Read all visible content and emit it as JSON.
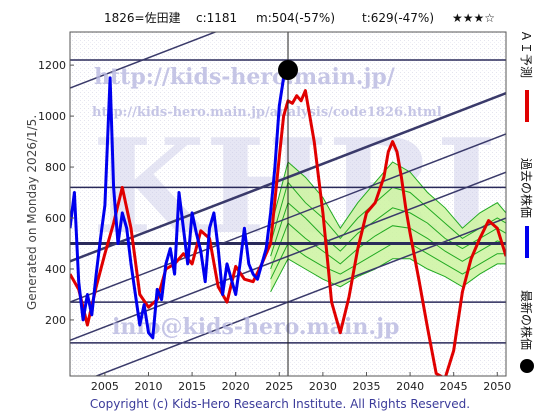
{
  "header": {
    "code_name": "1826=佐田建",
    "current": "c:1181",
    "m_val": "m:504(-57%)",
    "t_val": "t:629(-47%)",
    "stars": "★★★☆"
  },
  "side_label": "Generated on Monday 2026/1/5.",
  "footer": "Copyright (c) Kids-Hero Research Institute. All Rights Reserved.",
  "watermarks": {
    "url": "http://kids-hero.main.jp/",
    "analysis_url": "http://kids-hero.main.jp/analysis/code1826.html",
    "big": "KHRI",
    "email": "info@kids-hero.main.jp"
  },
  "legend": [
    {
      "marker": "line",
      "color": "#e00000",
      "label": "ＡＩ予測"
    },
    {
      "marker": "line",
      "color": "#0000ee",
      "label": "過去の株価"
    },
    {
      "marker": "dot",
      "color": "#000000",
      "label": "最新の株価"
    }
  ],
  "colors": {
    "actual": "#0000ee",
    "forecast": "#e00000",
    "band_line": "#22aa22",
    "band_fill": "#ccf3a0",
    "band_fill_yellow": "#ffffb0",
    "trend": "#3a3a6a",
    "hline": "#2a2a5a"
  },
  "chart_data": {
    "type": "line",
    "xlim": [
      2001,
      2051
    ],
    "ylim": [
      -20,
      1330
    ],
    "xticks": [
      "2005",
      "2010",
      "2015",
      "2020",
      "2025",
      "2030",
      "2035",
      "2040",
      "2045",
      "2050"
    ],
    "yticks": [
      "200",
      "400",
      "600",
      "800",
      "1000",
      "1200"
    ],
    "x_tick_values": [
      2005,
      2010,
      2015,
      2020,
      2025,
      2030,
      2035,
      2040,
      2045,
      2050
    ],
    "y_tick_values": [
      200,
      400,
      600,
      800,
      1000,
      1200
    ],
    "horizontal_levels": [
      110,
      270,
      500,
      720,
      1220
    ],
    "current_marker": {
      "x": 2026.0,
      "y": 1181
    },
    "vertical_marker_x": 2026.0,
    "trend_lines": [
      {
        "x": [
          2001,
          2051
        ],
        "y": [
          1110,
          1770
        ]
      },
      {
        "x": [
          2001,
          2051
        ],
        "y": [
          430,
          1090
        ]
      },
      {
        "x": [
          2001,
          2051
        ],
        "y": [
          270,
          930
        ]
      },
      {
        "x": [
          2001,
          2051
        ],
        "y": [
          120,
          780
        ]
      },
      {
        "x": [
          2001,
          2051
        ],
        "y": [
          -60,
          600
        ]
      }
    ],
    "series": [
      {
        "name": "過去の株価",
        "x": [
          2001.0,
          2001.5,
          2002.0,
          2002.5,
          2003.0,
          2003.5,
          2004.0,
          2004.5,
          2005.0,
          2005.3,
          2005.6,
          2006.0,
          2006.5,
          2007.0,
          2007.5,
          2008.0,
          2008.5,
          2009.0,
          2009.5,
          2010.0,
          2010.5,
          2011.0,
          2011.5,
          2012.0,
          2012.5,
          2013.0,
          2013.5,
          2014.0,
          2014.5,
          2015.0,
          2015.5,
          2016.0,
          2016.5,
          2017.0,
          2017.5,
          2018.0,
          2018.5,
          2019.0,
          2019.5,
          2020.0,
          2020.5,
          2021.0,
          2021.5,
          2022.0,
          2022.5,
          2023.0,
          2023.5,
          2024.0,
          2024.5,
          2025.0,
          2025.5,
          2026.0
        ],
        "y": [
          560,
          700,
          350,
          200,
          300,
          220,
          380,
          520,
          650,
          900,
          1150,
          720,
          500,
          620,
          560,
          420,
          300,
          180,
          260,
          150,
          130,
          320,
          280,
          420,
          480,
          380,
          700,
          560,
          420,
          620,
          540,
          470,
          350,
          560,
          620,
          480,
          300,
          420,
          360,
          300,
          420,
          560,
          420,
          380,
          360,
          420,
          480,
          620,
          800,
          1040,
          1150,
          1181
        ]
      },
      {
        "name": "ＡＩ予測",
        "x": [
          2001.0,
          2002.0,
          2003.0,
          2004.0,
          2005.0,
          2006.0,
          2007.0,
          2008.0,
          2009.0,
          2010.0,
          2011.0,
          2012.0,
          2013.0,
          2014.0,
          2015.0,
          2016.0,
          2017.0,
          2018.0,
          2019.0,
          2020.0,
          2021.0,
          2022.0,
          2023.0,
          2024.0,
          2025.0,
          2025.5,
          2026.0,
          2026.5,
          2027.0,
          2027.5,
          2028.0,
          2029.0,
          2030.0,
          2031.0,
          2032.0,
          2033.0,
          2034.0,
          2035.0,
          2036.0,
          2037.0,
          2037.5,
          2038.0,
          2038.5,
          2039.0,
          2039.5,
          2040.0,
          2041.0,
          2042.0,
          2043.0,
          2044.0,
          2045.0,
          2046.0,
          2047.0,
          2048.0,
          2049.0,
          2050.0,
          2051.0
        ],
        "y": [
          380,
          320,
          180,
          330,
          460,
          580,
          720,
          560,
          300,
          250,
          280,
          400,
          420,
          460,
          420,
          550,
          520,
          330,
          270,
          410,
          360,
          350,
          420,
          500,
          840,
          1000,
          1060,
          1050,
          1080,
          1060,
          1100,
          900,
          620,
          270,
          150,
          290,
          480,
          620,
          660,
          760,
          860,
          900,
          860,
          760,
          640,
          540,
          360,
          170,
          -10,
          -30,
          80,
          310,
          440,
          520,
          590,
          560,
          450
        ]
      }
    ],
    "band_lines": [
      {
        "x": [
          2024,
          2026,
          2028,
          2030,
          2032,
          2034,
          2036,
          2038,
          2040,
          2042,
          2044,
          2046,
          2048,
          2050,
          2051
        ],
        "y": [
          560,
          820,
          760,
          680,
          560,
          660,
          740,
          820,
          780,
          700,
          640,
          560,
          620,
          660,
          620
        ]
      },
      {
        "x": [
          2024,
          2026,
          2028,
          2030,
          2032,
          2034,
          2036,
          2038,
          2040,
          2042,
          2044,
          2046,
          2048,
          2050,
          2051
        ],
        "y": [
          500,
          740,
          660,
          600,
          520,
          600,
          660,
          720,
          700,
          640,
          580,
          520,
          560,
          600,
          580
        ]
      },
      {
        "x": [
          2024,
          2026,
          2028,
          2030,
          2032,
          2034,
          2036,
          2038,
          2040,
          2042,
          2044,
          2046,
          2048,
          2050,
          2051
        ],
        "y": [
          450,
          660,
          600,
          530,
          470,
          540,
          590,
          640,
          620,
          580,
          520,
          480,
          520,
          560,
          540
        ]
      },
      {
        "x": [
          2024,
          2026,
          2028,
          2030,
          2032,
          2034,
          2036,
          2038,
          2040,
          2042,
          2044,
          2046,
          2048,
          2050,
          2051
        ],
        "y": [
          400,
          580,
          520,
          470,
          420,
          480,
          530,
          570,
          560,
          520,
          470,
          430,
          470,
          510,
          500
        ]
      },
      {
        "x": [
          2024,
          2026,
          2028,
          2030,
          2032,
          2034,
          2036,
          2038,
          2040,
          2042,
          2044,
          2046,
          2048,
          2050,
          2051
        ],
        "y": [
          360,
          500,
          450,
          410,
          380,
          420,
          460,
          500,
          500,
          460,
          420,
          380,
          420,
          460,
          460
        ]
      },
      {
        "x": [
          2024,
          2026,
          2028,
          2030,
          2032,
          2034,
          2036,
          2038,
          2040,
          2042,
          2044,
          2046,
          2048,
          2050,
          2051
        ],
        "y": [
          310,
          440,
          400,
          360,
          330,
          370,
          400,
          440,
          440,
          400,
          370,
          330,
          380,
          420,
          420
        ]
      }
    ]
  }
}
